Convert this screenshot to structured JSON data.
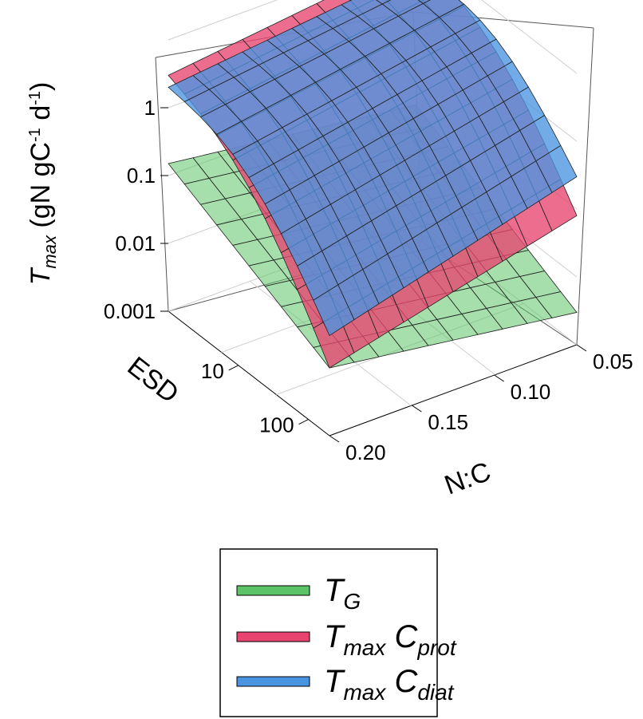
{
  "chart_data": {
    "type": "surface",
    "title": "",
    "zlabel": {
      "symbol": "T",
      "subscript": "max",
      "units": "(gN gC",
      "sup1": "-1",
      "mid": " d",
      "sup2": "-1",
      "close": ")"
    },
    "xlabel": "N:C",
    "ylabel": "ESD",
    "zscale": "log",
    "zlim": [
      0.001,
      10
    ],
    "z_ticks": [
      "0.001",
      "0.01",
      "0.1",
      "1"
    ],
    "x_ticks": [
      "0.05",
      "0.10",
      "0.15",
      "0.20"
    ],
    "x_range": [
      0.05,
      0.2
    ],
    "y_ticks": [
      "10",
      "100"
    ],
    "y_range": [
      1,
      200
    ],
    "grid": true,
    "legend_position": "bottom-center",
    "series": [
      {
        "name": "T_G",
        "legend": {
          "base": "T",
          "sub": "G",
          "base2": "",
          "sub2": ""
        },
        "color": "#5cc466",
        "note": "surface roughly 0.15 at small ESD / high N:C, decreasing toward ~0.004 at large ESD / low N:C",
        "z_corners": {
          "esd_small_nc_high": 0.15,
          "esd_small_nc_low": 0.05,
          "esd_large_nc_high": 0.01,
          "esd_large_nc_low": 0.003
        }
      },
      {
        "name": "T_max C_prot",
        "legend": {
          "base": "T",
          "sub": "max",
          "base2": " C",
          "sub2": "prot"
        },
        "color": "#e8446f",
        "z_corners": {
          "esd_small_nc_high": 3.0,
          "esd_small_nc_low": 8.0,
          "esd_large_nc_high": 0.01,
          "esd_large_nc_low": 0.08
        }
      },
      {
        "name": "T_max C_diat",
        "legend": {
          "base": "T",
          "sub": "max",
          "base2": " C",
          "sub2": "diat"
        },
        "color": "#4a95e2",
        "z_corners": {
          "esd_small_nc_high": 2.0,
          "esd_small_nc_low": 5.0,
          "esd_large_nc_high": 0.03,
          "esd_large_nc_low": 0.3
        }
      }
    ]
  }
}
